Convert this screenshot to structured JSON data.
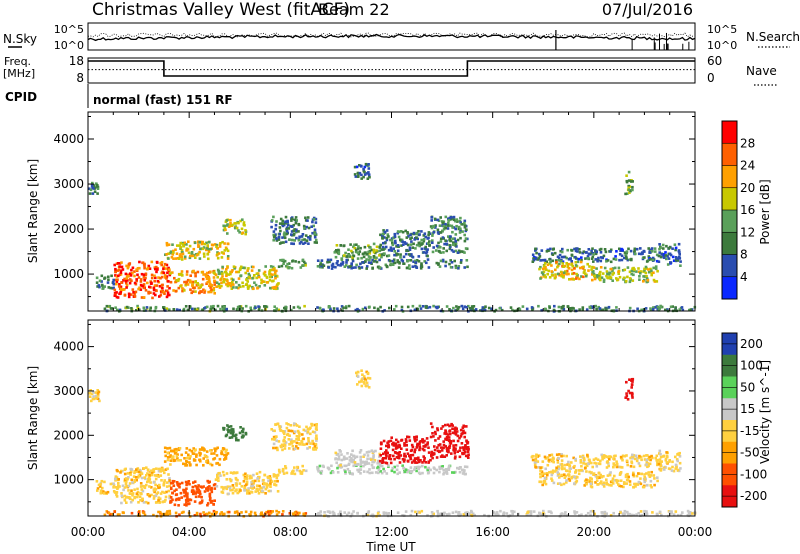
{
  "header": {
    "title": "Christmas Valley West (fitACF)",
    "beam": "Beam 22",
    "date": "07/Jul/2016"
  },
  "noise_panel": {
    "left_label": "N.Sky",
    "right_label": "N.Search",
    "left_ticks": [
      "10^5",
      "10^0"
    ],
    "right_ticks": [
      "10^5",
      "10^0"
    ]
  },
  "freq_panel": {
    "left_label_1": "Freq.",
    "left_label_2": "[MHz]",
    "right_label": "Nave",
    "left_ticks": [
      "18",
      "8"
    ],
    "right_ticks": [
      "60",
      "0"
    ],
    "freq_steps": [
      {
        "start_hour": 0,
        "end_hour": 3,
        "mhz": 16.8
      },
      {
        "start_hour": 3,
        "end_hour": 15,
        "mhz": 10.8
      },
      {
        "start_hour": 15,
        "end_hour": 24,
        "mhz": 16.8
      }
    ],
    "nave_level": 32
  },
  "cpid": {
    "label": "CPID",
    "mode": "normal (fast) 151 RF"
  },
  "x_axis": {
    "label": "Time UT",
    "ticks": [
      "00:00",
      "04:00",
      "08:00",
      "12:00",
      "16:00",
      "20:00",
      "00:00"
    ],
    "range_hours": [
      0,
      24
    ]
  },
  "chart_data": [
    {
      "type": "heatmap",
      "quantity": "Power",
      "ylabel": "Slant Range [km]",
      "yticks": [
        "1000",
        "2000",
        "3000",
        "4000"
      ],
      "ylim": [
        180,
        4600
      ],
      "colorbar_label": "Power [dB]",
      "colorbar_ticks": [
        "4",
        "8",
        "12",
        "16",
        "20",
        "24",
        "28"
      ],
      "colorbar_range": [
        0,
        32
      ],
      "colormap": [
        "#0a28ff",
        "#2a4db0",
        "#3c7a3c",
        "#5aa05a",
        "#c8c800",
        "#ffa000",
        "#ff6000",
        "#ff0000"
      ],
      "regions": [
        {
          "t0": 0.6,
          "t1": 8.6,
          "r0": 200,
          "r1": 320,
          "value": 12
        },
        {
          "t0": 9.0,
          "t1": 24.0,
          "r0": 200,
          "r1": 320,
          "value": 10
        },
        {
          "t0": 0.3,
          "t1": 1.0,
          "r0": 700,
          "r1": 1000,
          "value": 8
        },
        {
          "t0": 1.0,
          "t1": 3.2,
          "r0": 500,
          "r1": 1300,
          "value": 27
        },
        {
          "t0": 3.2,
          "t1": 5.0,
          "r0": 600,
          "r1": 1100,
          "value": 22
        },
        {
          "t0": 5.0,
          "t1": 7.5,
          "r0": 700,
          "r1": 1200,
          "value": 18
        },
        {
          "t0": 7.5,
          "t1": 8.6,
          "r0": 1150,
          "r1": 1350,
          "value": 14
        },
        {
          "t0": 3.0,
          "t1": 5.5,
          "r0": 1350,
          "r1": 1750,
          "value": 19
        },
        {
          "t0": 5.3,
          "t1": 6.2,
          "r0": 1900,
          "r1": 2250,
          "value": 17
        },
        {
          "t0": 9.0,
          "t1": 15.0,
          "r0": 1150,
          "r1": 1350,
          "value": 9
        },
        {
          "t0": 9.7,
          "t1": 11.6,
          "r0": 1350,
          "r1": 1700,
          "value": 13
        },
        {
          "t0": 11.5,
          "t1": 13.5,
          "r0": 1400,
          "r1": 2000,
          "value": 9
        },
        {
          "t0": 13.5,
          "t1": 15.0,
          "r0": 1500,
          "r1": 2300,
          "value": 11
        },
        {
          "t0": 7.2,
          "t1": 9.0,
          "r0": 1700,
          "r1": 2300,
          "value": 9
        },
        {
          "t0": 17.5,
          "t1": 22.5,
          "r0": 1300,
          "r1": 1600,
          "value": 8
        },
        {
          "t0": 17.8,
          "t1": 19.8,
          "r0": 900,
          "r1": 1300,
          "value": 20
        },
        {
          "t0": 19.8,
          "t1": 22.5,
          "r0": 850,
          "r1": 1200,
          "value": 17
        },
        {
          "t0": 22.5,
          "t1": 23.4,
          "r0": 1200,
          "r1": 1700,
          "value": 8
        },
        {
          "t0": 21.2,
          "t1": 21.5,
          "r0": 2800,
          "r1": 3300,
          "value": 14
        },
        {
          "t0": 0.0,
          "t1": 0.4,
          "r0": 2800,
          "r1": 3050,
          "value": 11
        },
        {
          "t0": 10.5,
          "t1": 11.1,
          "r0": 3100,
          "r1": 3500,
          "value": 8
        }
      ]
    },
    {
      "type": "heatmap",
      "quantity": "Velocity",
      "ylabel": "Slant Range [km]",
      "yticks": [
        "1000",
        "2000",
        "3000",
        "4000"
      ],
      "ylim": [
        180,
        4600
      ],
      "colorbar_label": "Velocity [m s^-1]",
      "colorbar_ticks": [
        "200",
        "100",
        "50",
        "15",
        "-15",
        "-50",
        "-100",
        "-200"
      ],
      "colorbar_range": [
        -250,
        250
      ],
      "colormap": [
        "#e81010",
        "#ff5000",
        "#ffa000",
        "#ffd040",
        "#c8c8c8",
        "#5ad25a",
        "#3c7a3c",
        "#2040b0"
      ],
      "regions": [
        {
          "t0": 0.6,
          "t1": 8.6,
          "r0": 200,
          "r1": 320,
          "value": -40
        },
        {
          "t0": 9.0,
          "t1": 24.0,
          "r0": 200,
          "r1": 320,
          "value": 30
        },
        {
          "t0": 0.3,
          "t1": 1.0,
          "r0": 700,
          "r1": 1000,
          "value": 0
        },
        {
          "t0": 1.0,
          "t1": 3.2,
          "r0": 500,
          "r1": 1300,
          "value": 0
        },
        {
          "t0": 3.2,
          "t1": 5.0,
          "r0": 450,
          "r1": 1000,
          "value": -70
        },
        {
          "t0": 5.0,
          "t1": 7.5,
          "r0": 700,
          "r1": 1200,
          "value": 0
        },
        {
          "t0": 7.5,
          "t1": 8.6,
          "r0": 1150,
          "r1": 1350,
          "value": 0
        },
        {
          "t0": 3.0,
          "t1": 5.5,
          "r0": 1350,
          "r1": 1750,
          "value": -25
        },
        {
          "t0": 5.3,
          "t1": 6.2,
          "r0": 1900,
          "r1": 2250,
          "value": 150
        },
        {
          "t0": 9.0,
          "t1": 15.0,
          "r0": 1150,
          "r1": 1350,
          "value": 40
        },
        {
          "t0": 9.7,
          "t1": 11.6,
          "r0": 1350,
          "r1": 1700,
          "value": 30
        },
        {
          "t0": 11.5,
          "t1": 13.5,
          "r0": 1400,
          "r1": 2000,
          "value": -180
        },
        {
          "t0": 13.5,
          "t1": 15.0,
          "r0": 1500,
          "r1": 2300,
          "value": -200
        },
        {
          "t0": 7.2,
          "t1": 9.0,
          "r0": 1700,
          "r1": 2300,
          "value": 0
        },
        {
          "t0": 17.5,
          "t1": 22.5,
          "r0": 1300,
          "r1": 1600,
          "value": 0
        },
        {
          "t0": 17.8,
          "t1": 19.8,
          "r0": 900,
          "r1": 1300,
          "value": 0
        },
        {
          "t0": 19.8,
          "t1": 22.5,
          "r0": 850,
          "r1": 1200,
          "value": 0
        },
        {
          "t0": 22.5,
          "t1": 23.4,
          "r0": 1200,
          "r1": 1700,
          "value": 0
        },
        {
          "t0": 21.2,
          "t1": 21.5,
          "r0": 2800,
          "r1": 3300,
          "value": -200
        },
        {
          "t0": 0.0,
          "t1": 0.4,
          "r0": 2800,
          "r1": 3050,
          "value": 0
        },
        {
          "t0": 10.5,
          "t1": 11.1,
          "r0": 3100,
          "r1": 3500,
          "value": 0
        }
      ]
    }
  ]
}
